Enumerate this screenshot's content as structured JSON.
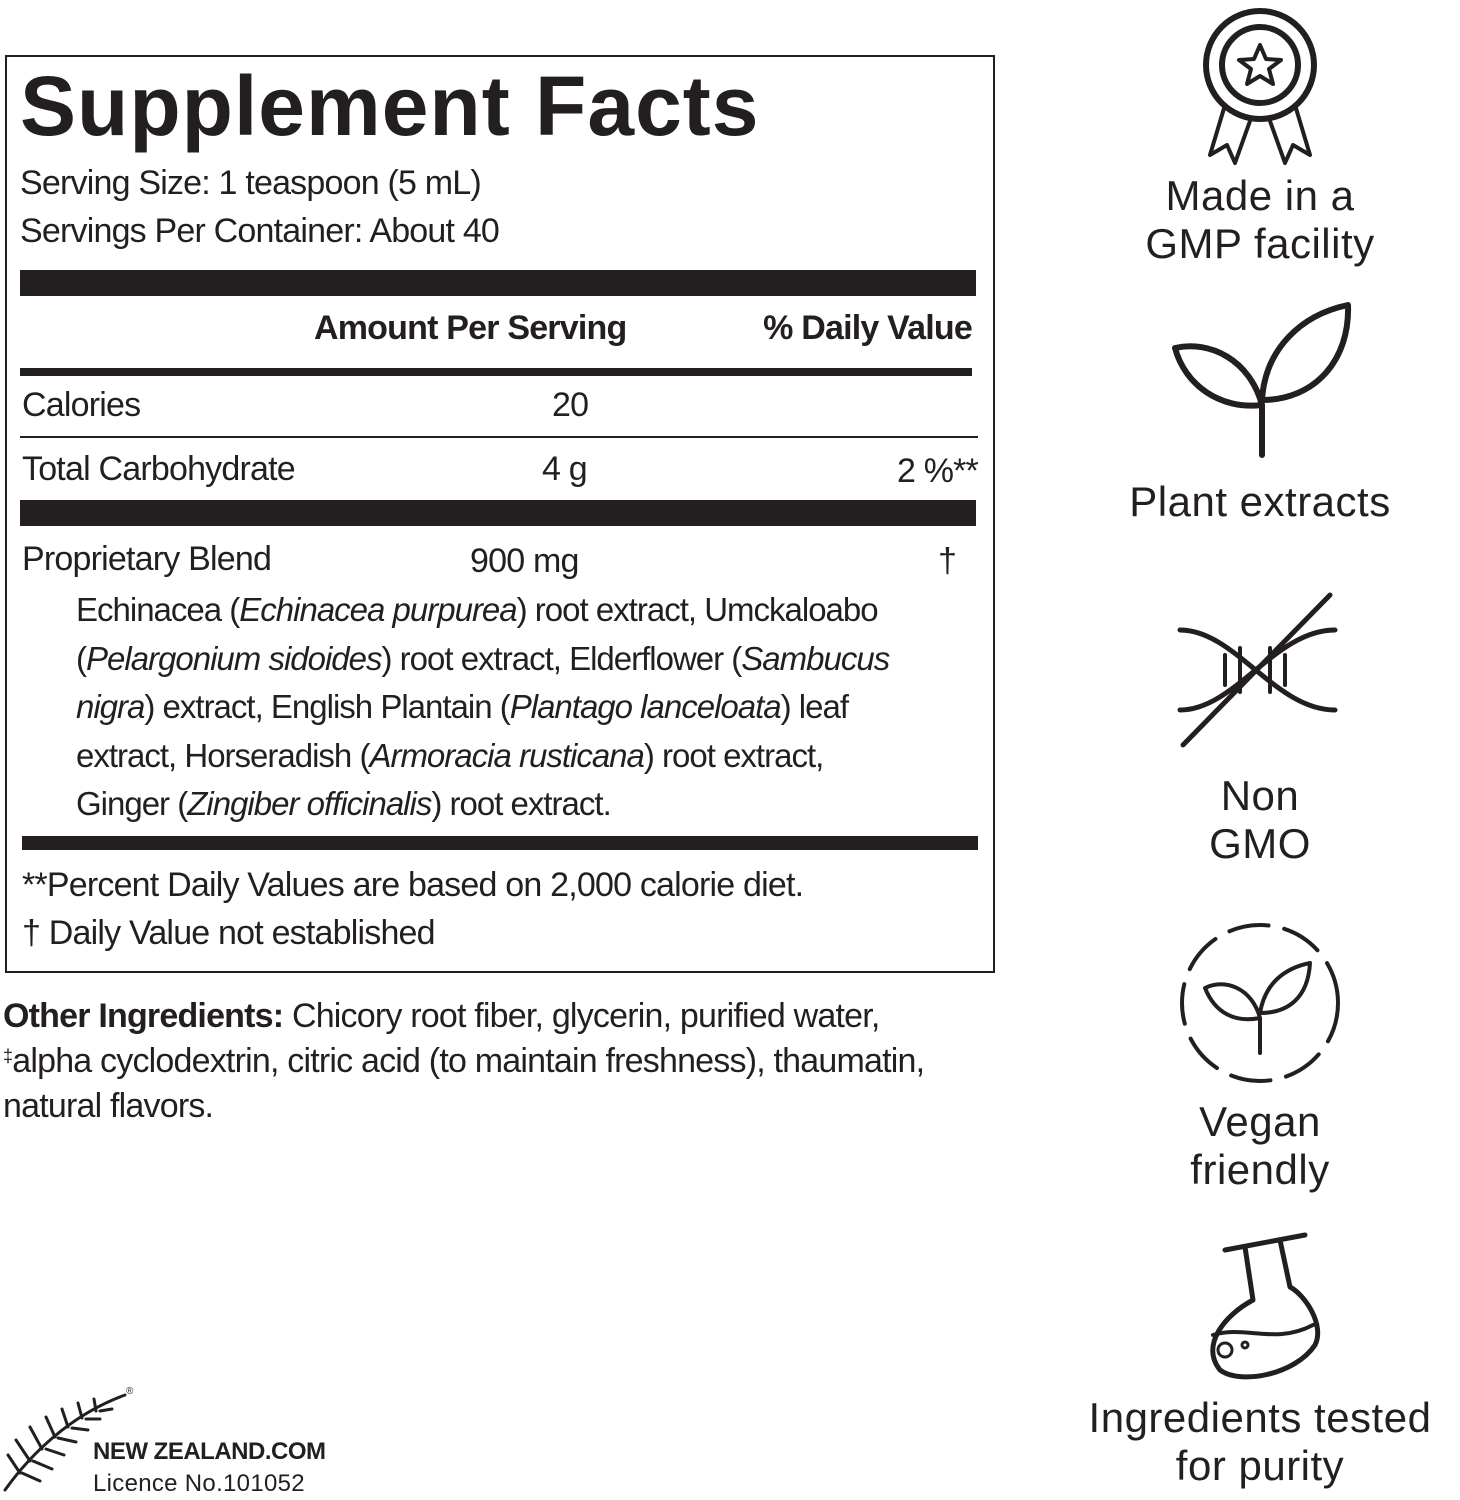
{
  "facts": {
    "title": "Supplement Facts",
    "serving_size": "Serving Size: 1 teaspoon (5 mL)",
    "servings_per_container": "Servings Per Container: About 40",
    "header": {
      "amount": "Amount Per Serving",
      "daily_value": "% Daily Value"
    },
    "rows": [
      {
        "name": "Calories",
        "amount": "20"
      },
      {
        "name": "Total Carbohydrate",
        "amount": "4 g",
        "daily_value": "2 %**"
      }
    ],
    "blend": {
      "name": "Proprietary Blend",
      "amount": "900 mg",
      "daily_value": "†",
      "ingredients": [
        "Echinacea (",
        "Echinacea purpurea",
        ") root extract, Umckaloabo (",
        "Pelargonium sidoides",
        ") root extract, Elderflower (",
        "Sambucus nigra",
        ") extract, English Plantain (",
        "Plantago lanceloata",
        ") leaf extract, Horseradish (",
        "Armoracia rusticana",
        ") root extract, Ginger (",
        "Zingiber officinalis",
        ") root extract."
      ]
    },
    "footnotes": [
      "**Percent Daily Values are based on 2,000 calorie diet.",
      "† Daily Value not established"
    ]
  },
  "other_ingredients": {
    "label": "Other Ingredients:",
    "text": [
      " Chicory root fiber, glycerin, purified water, ",
      "‡",
      "alpha cyclodextrin, citric acid (to maintain freshness), thaumatin, natural flavors."
    ]
  },
  "badges": [
    {
      "lines": [
        "Made in a",
        "GMP facility"
      ]
    },
    {
      "lines": [
        "Plant extracts"
      ]
    },
    {
      "lines": [
        "Non",
        "GMO"
      ]
    },
    {
      "lines": [
        "Vegan",
        "friendly"
      ]
    },
    {
      "lines": [
        "Ingredients tested",
        "for purity"
      ]
    }
  ],
  "logo": {
    "mark": "®",
    "name": "NEW ZEALAND.COM",
    "licence": "Licence No.101052"
  }
}
